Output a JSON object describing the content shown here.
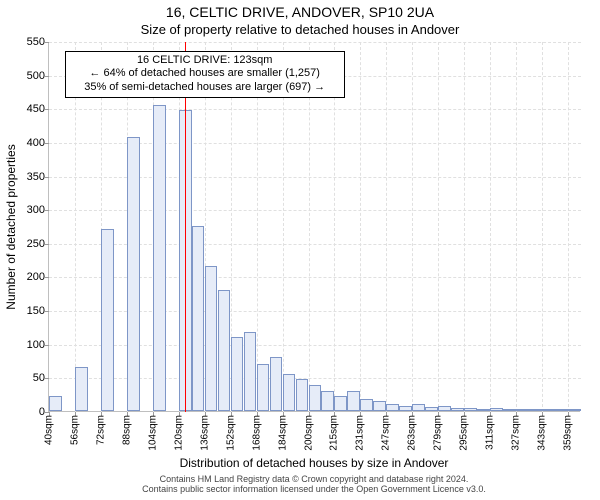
{
  "title_main": "16, CELTIC DRIVE, ANDOVER, SP10 2UA",
  "title_sub": "Size of property relative to detached houses in Andover",
  "ylabel": "Number of detached properties",
  "xlabel": "Distribution of detached houses by size in Andover",
  "attribution_line1": "Contains HM Land Registry data © Crown copyright and database right 2024.",
  "attribution_line2": "Contains public sector information licensed under the Open Government Licence v3.0.",
  "histogram": {
    "type": "histogram",
    "ylim": [
      0,
      550
    ],
    "ytick_step": 50,
    "xtick_labels": [
      "40sqm",
      "56sqm",
      "72sqm",
      "88sqm",
      "104sqm",
      "120sqm",
      "136sqm",
      "152sqm",
      "168sqm",
      "184sqm",
      "200sqm",
      "215sqm",
      "231sqm",
      "247sqm",
      "263sqm",
      "279sqm",
      "295sqm",
      "311sqm",
      "327sqm",
      "343sqm",
      "359sqm"
    ],
    "xtick_every": 2,
    "bins": 41,
    "values": [
      22,
      0,
      65,
      0,
      270,
      0,
      408,
      0,
      455,
      0,
      448,
      275,
      215,
      180,
      110,
      118,
      70,
      80,
      55,
      48,
      38,
      30,
      22,
      30,
      18,
      15,
      10,
      8,
      10,
      6,
      8,
      5,
      5,
      3,
      5,
      3,
      3,
      2,
      2,
      2,
      3
    ],
    "bar_fill": "#e6ecf8",
    "bar_stroke": "#7e96c7",
    "background_color": "#ffffff",
    "grid_color": "#e0e0e0",
    "axis_color": "#bfbfbf",
    "tick_fontsize": 11,
    "xtick_fontsize": 10,
    "marker": {
      "bin_position": 10.5,
      "color": "#ff0000"
    },
    "annotation": {
      "line1": "16 CELTIC DRIVE: 123sqm",
      "line2": "← 64% of detached houses are smaller (1,257)",
      "line3": "35% of semi-detached houses are larger (697) →",
      "left_bin": 1.2,
      "right_bin": 22.8,
      "top_y": 537
    }
  }
}
